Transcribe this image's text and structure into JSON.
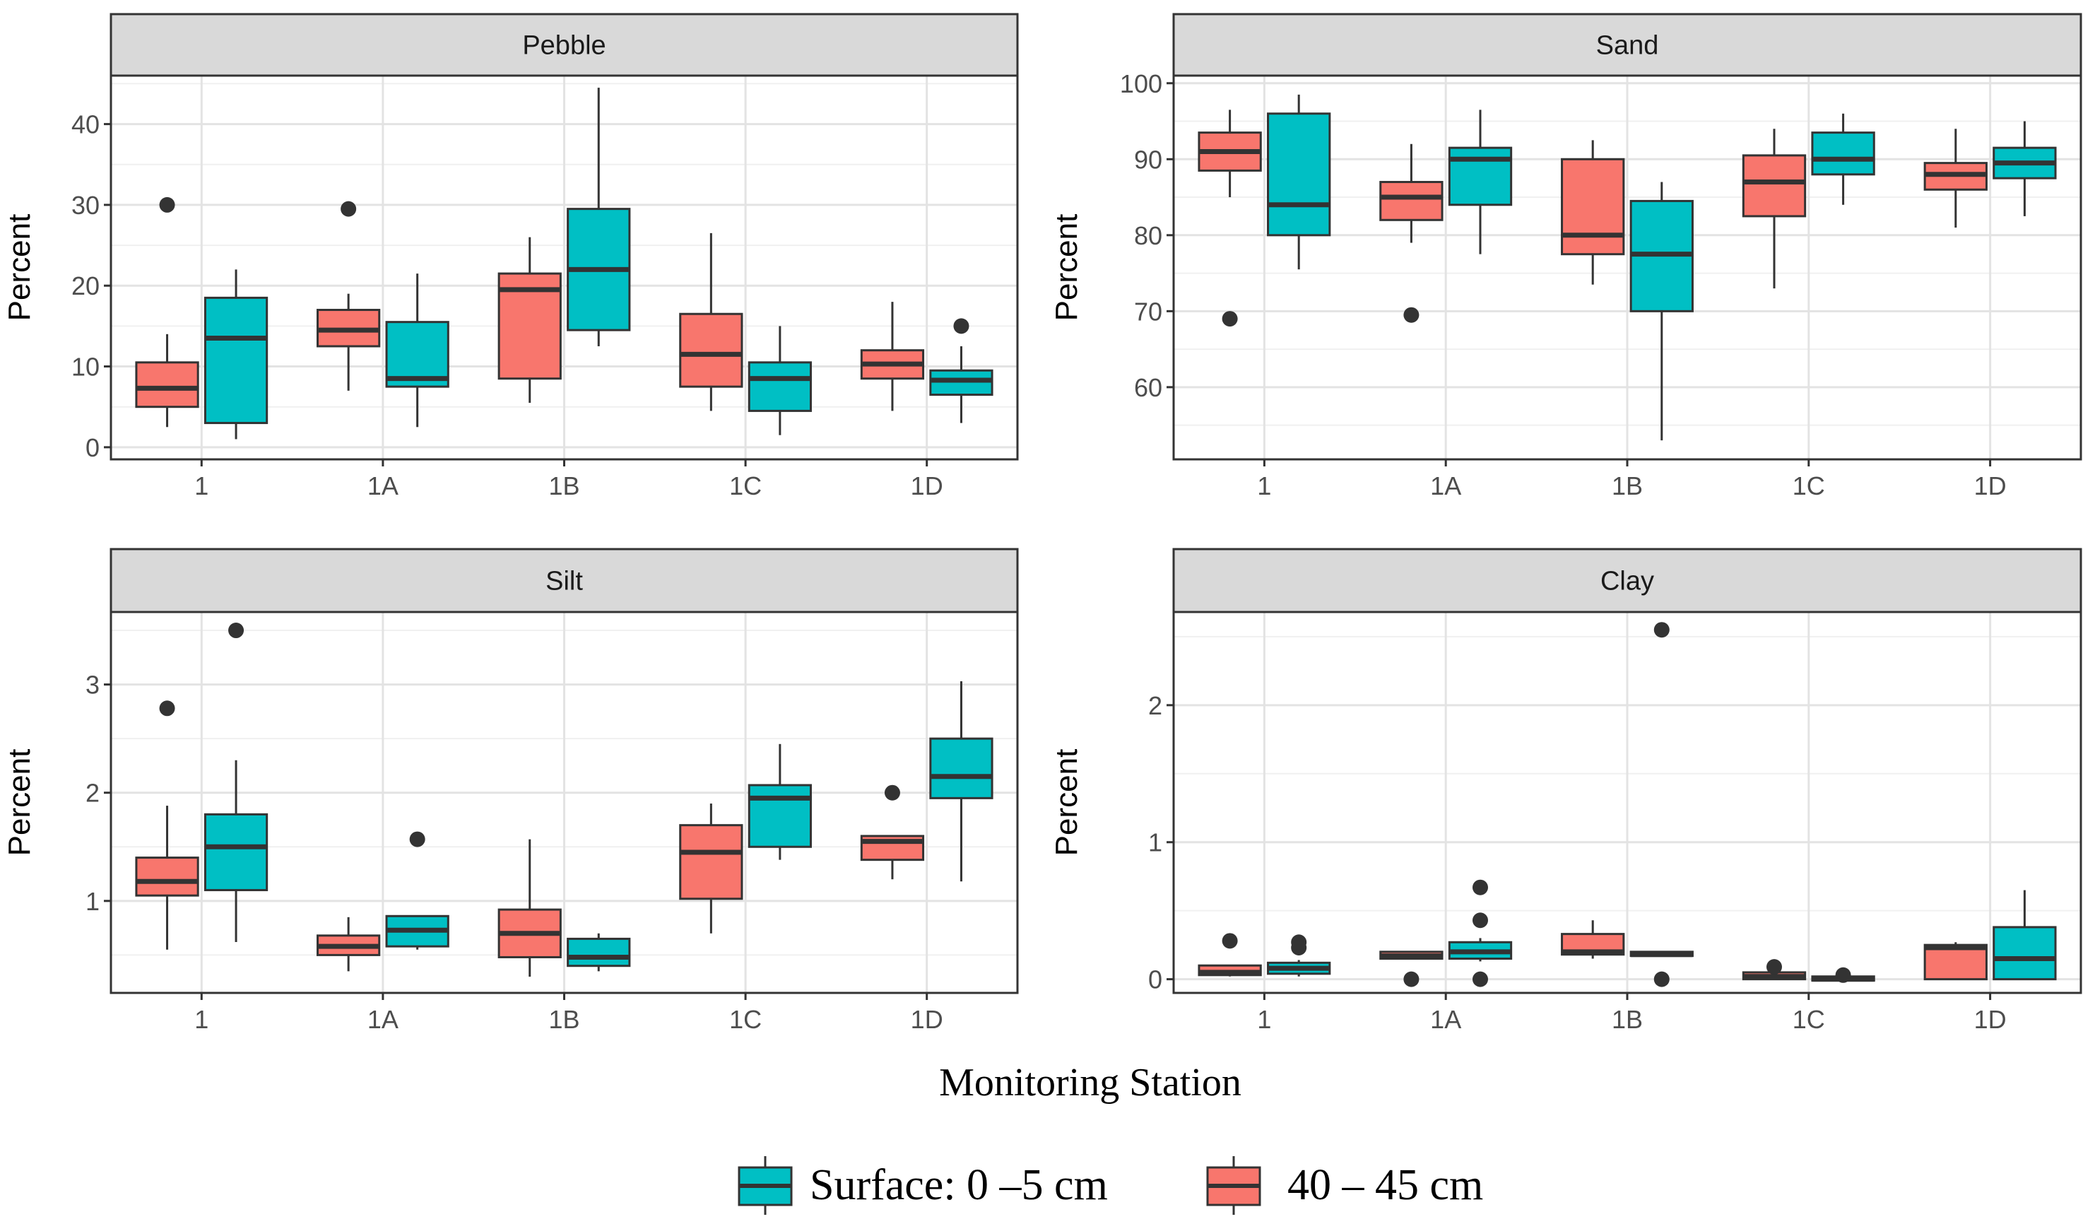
{
  "figure": {
    "xlabel": "Monitoring Station",
    "legend": [
      {
        "key": "surface",
        "label": "Surface: 0 –5 cm",
        "color": "#00BFC4"
      },
      {
        "key": "deep",
        "label": "40 – 45 cm",
        "color": "#F8766D"
      }
    ]
  },
  "chart_data": [
    {
      "type": "boxplot",
      "title": "Pebble",
      "xlabel": "Monitoring Station",
      "ylabel": "Percent",
      "categories": [
        "1",
        "1A",
        "1B",
        "1C",
        "1D"
      ],
      "ylim": [
        -1.5,
        46
      ],
      "yticks": [
        0,
        10,
        20,
        30,
        40
      ],
      "series": [
        {
          "name": "40 – 45 cm",
          "color": "#F8766D",
          "boxes": [
            {
              "min": 2.5,
              "q1": 5,
              "median": 7.3,
              "q3": 10.5,
              "max": 14,
              "outliers": [
                30
              ]
            },
            {
              "min": 7,
              "q1": 12.5,
              "median": 14.5,
              "q3": 17,
              "max": 19,
              "outliers": [
                29.5
              ]
            },
            {
              "min": 5.5,
              "q1": 8.5,
              "median": 19.5,
              "q3": 21.5,
              "max": 26,
              "outliers": []
            },
            {
              "min": 4.5,
              "q1": 7.5,
              "median": 11.5,
              "q3": 16.5,
              "max": 26.5,
              "outliers": []
            },
            {
              "min": 4.5,
              "q1": 8.5,
              "median": 10.3,
              "q3": 12,
              "max": 18,
              "outliers": []
            }
          ]
        },
        {
          "name": "Surface: 0 –5 cm",
          "color": "#00BFC4",
          "boxes": [
            {
              "min": 1,
              "q1": 3,
              "median": 13.5,
              "q3": 18.5,
              "max": 22,
              "outliers": []
            },
            {
              "min": 2.5,
              "q1": 7.5,
              "median": 8.5,
              "q3": 15.5,
              "max": 21.5,
              "outliers": []
            },
            {
              "min": 12.5,
              "q1": 14.5,
              "median": 22,
              "q3": 29.5,
              "max": 44.5,
              "outliers": []
            },
            {
              "min": 1.5,
              "q1": 4.5,
              "median": 8.5,
              "q3": 10.5,
              "max": 15,
              "outliers": []
            },
            {
              "min": 3,
              "q1": 6.5,
              "median": 8.3,
              "q3": 9.5,
              "max": 12.5,
              "outliers": [
                15
              ]
            }
          ]
        }
      ]
    },
    {
      "type": "boxplot",
      "title": "Sand",
      "xlabel": "Monitoring Station",
      "ylabel": "Percent",
      "categories": [
        "1",
        "1A",
        "1B",
        "1C",
        "1D"
      ],
      "ylim": [
        50.5,
        101
      ],
      "yticks": [
        60,
        70,
        80,
        90,
        100
      ],
      "series": [
        {
          "name": "40 – 45 cm",
          "color": "#F8766D",
          "boxes": [
            {
              "min": 85,
              "q1": 88.5,
              "median": 91,
              "q3": 93.5,
              "max": 96.5,
              "outliers": [
                69
              ]
            },
            {
              "min": 79,
              "q1": 82,
              "median": 85,
              "q3": 87,
              "max": 92,
              "outliers": [
                69.5
              ]
            },
            {
              "min": 73.5,
              "q1": 77.5,
              "median": 80,
              "q3": 90,
              "max": 92.5,
              "outliers": []
            },
            {
              "min": 73,
              "q1": 82.5,
              "median": 87,
              "q3": 90.5,
              "max": 94,
              "outliers": []
            },
            {
              "min": 81,
              "q1": 86,
              "median": 88,
              "q3": 89.5,
              "max": 94,
              "outliers": []
            }
          ]
        },
        {
          "name": "Surface: 0 –5 cm",
          "color": "#00BFC4",
          "boxes": [
            {
              "min": 75.5,
              "q1": 80,
              "median": 84,
              "q3": 96,
              "max": 98.5,
              "outliers": []
            },
            {
              "min": 77.5,
              "q1": 84,
              "median": 90,
              "q3": 91.5,
              "max": 96.5,
              "outliers": []
            },
            {
              "min": 53,
              "q1": 70,
              "median": 77.5,
              "q3": 84.5,
              "max": 87,
              "outliers": []
            },
            {
              "min": 84,
              "q1": 88,
              "median": 90,
              "q3": 93.5,
              "max": 96,
              "outliers": []
            },
            {
              "min": 82.5,
              "q1": 87.5,
              "median": 89.5,
              "q3": 91.5,
              "max": 95,
              "outliers": []
            }
          ]
        }
      ]
    },
    {
      "type": "boxplot",
      "title": "Silt",
      "xlabel": "Monitoring Station",
      "ylabel": "Percent",
      "categories": [
        "1",
        "1A",
        "1B",
        "1C",
        "1D"
      ],
      "ylim": [
        0.15,
        3.67
      ],
      "yticks": [
        1,
        2,
        3
      ],
      "series": [
        {
          "name": "40 – 45 cm",
          "color": "#F8766D",
          "boxes": [
            {
              "min": 0.55,
              "q1": 1.05,
              "median": 1.18,
              "q3": 1.4,
              "max": 1.88,
              "outliers": [
                2.78
              ]
            },
            {
              "min": 0.35,
              "q1": 0.5,
              "median": 0.58,
              "q3": 0.68,
              "max": 0.85,
              "outliers": []
            },
            {
              "min": 0.3,
              "q1": 0.48,
              "median": 0.7,
              "q3": 0.92,
              "max": 1.57,
              "outliers": []
            },
            {
              "min": 0.7,
              "q1": 1.02,
              "median": 1.45,
              "q3": 1.7,
              "max": 1.9,
              "outliers": []
            },
            {
              "min": 1.2,
              "q1": 1.38,
              "median": 1.55,
              "q3": 1.6,
              "max": 1.6,
              "outliers": [
                2.0
              ]
            }
          ]
        },
        {
          "name": "Surface: 0 –5 cm",
          "color": "#00BFC4",
          "boxes": [
            {
              "min": 0.62,
              "q1": 1.1,
              "median": 1.5,
              "q3": 1.8,
              "max": 2.3,
              "outliers": [
                3.5
              ]
            },
            {
              "min": 0.55,
              "q1": 0.58,
              "median": 0.73,
              "q3": 0.86,
              "max": 0.86,
              "outliers": [
                1.57
              ]
            },
            {
              "min": 0.35,
              "q1": 0.4,
              "median": 0.48,
              "q3": 0.65,
              "max": 0.7,
              "outliers": []
            },
            {
              "min": 1.38,
              "q1": 1.5,
              "median": 1.95,
              "q3": 2.07,
              "max": 2.45,
              "outliers": []
            },
            {
              "min": 1.18,
              "q1": 1.95,
              "median": 2.15,
              "q3": 2.5,
              "max": 3.03,
              "outliers": []
            }
          ]
        }
      ]
    },
    {
      "type": "boxplot",
      "title": "Clay",
      "xlabel": "Monitoring Station",
      "ylabel": "Percent",
      "categories": [
        "1",
        "1A",
        "1B",
        "1C",
        "1D"
      ],
      "ylim": [
        -0.1,
        2.68
      ],
      "yticks": [
        0,
        1,
        2
      ],
      "series": [
        {
          "name": "40 – 45 cm",
          "color": "#F8766D",
          "boxes": [
            {
              "min": 0.02,
              "q1": 0.03,
              "median": 0.05,
              "q3": 0.1,
              "max": 0.1,
              "outliers": [
                0.28
              ]
            },
            {
              "min": 0.15,
              "q1": 0.15,
              "median": 0.17,
              "q3": 0.2,
              "max": 0.2,
              "outliers": [
                0.0
              ]
            },
            {
              "min": 0.15,
              "q1": 0.18,
              "median": 0.2,
              "q3": 0.33,
              "max": 0.43,
              "outliers": []
            },
            {
              "min": 0.0,
              "q1": 0.0,
              "median": 0.02,
              "q3": 0.05,
              "max": 0.05,
              "outliers": [
                0.09
              ]
            },
            {
              "min": 0.0,
              "q1": 0.0,
              "median": 0.23,
              "q3": 0.25,
              "max": 0.27,
              "outliers": []
            }
          ]
        },
        {
          "name": "Surface: 0 –5 cm",
          "color": "#00BFC4",
          "boxes": [
            {
              "min": 0.02,
              "q1": 0.04,
              "median": 0.08,
              "q3": 0.12,
              "max": 0.14,
              "outliers": [
                0.23,
                0.27
              ]
            },
            {
              "min": 0.13,
              "q1": 0.15,
              "median": 0.2,
              "q3": 0.27,
              "max": 0.3,
              "outliers": [
                0.0,
                0.43,
                0.67
              ]
            },
            {
              "min": 0.17,
              "q1": 0.17,
              "median": 0.18,
              "q3": 0.2,
              "max": 0.2,
              "outliers": [
                0.0,
                2.55
              ]
            },
            {
              "min": -0.01,
              "q1": -0.01,
              "median": 0.0,
              "q3": 0.02,
              "max": 0.02,
              "outliers": [
                0.03
              ]
            },
            {
              "min": 0.0,
              "q1": 0.0,
              "median": 0.15,
              "q3": 0.38,
              "max": 0.65,
              "outliers": []
            }
          ]
        }
      ]
    }
  ]
}
